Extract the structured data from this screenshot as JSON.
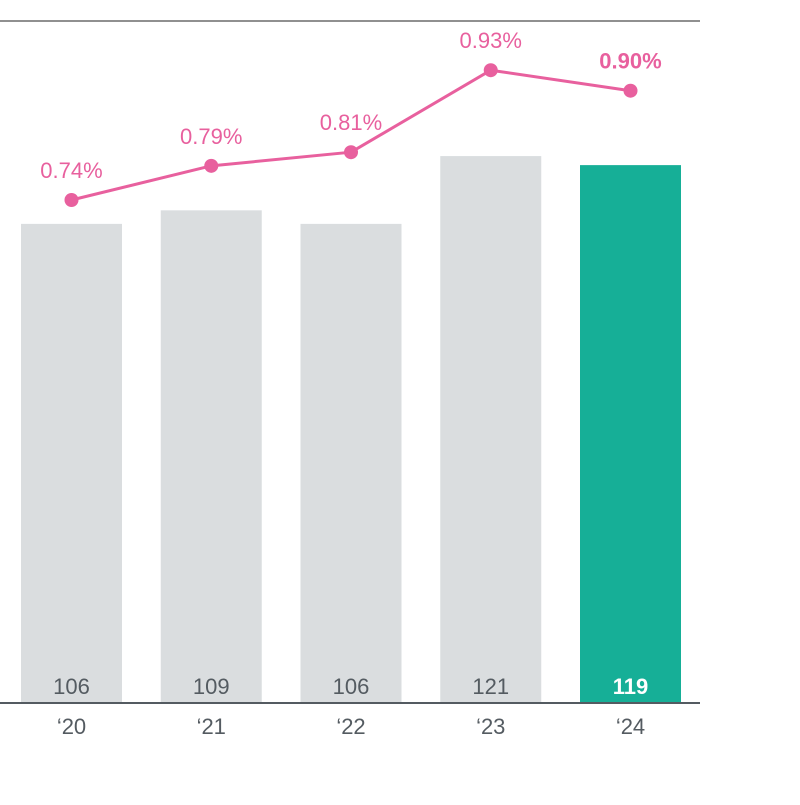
{
  "chart_data": {
    "type": "bar",
    "categories": [
      "‘20",
      "‘21",
      "‘22",
      "‘23",
      "‘24"
    ],
    "values": [
      106,
      109,
      106,
      121,
      119
    ],
    "value_labels": [
      "106",
      "109",
      "106",
      "121",
      "119"
    ],
    "highlight_index": 4,
    "line_series": {
      "values": [
        0.74,
        0.79,
        0.81,
        0.93,
        0.9
      ],
      "labels": [
        "0.74%",
        "0.79%",
        "0.81%",
        "0.93%",
        "0.90%"
      ]
    },
    "grid": false,
    "legend": "none"
  },
  "colors": {
    "bar": "#dadddf",
    "bar_highlight": "#16af97",
    "bar_label": "#545b61",
    "bar_label_highlight": "#ffffff",
    "line": "#e8609e",
    "axis": "#545b61",
    "top_rule": "#222222",
    "tick_label": "#545b61"
  }
}
